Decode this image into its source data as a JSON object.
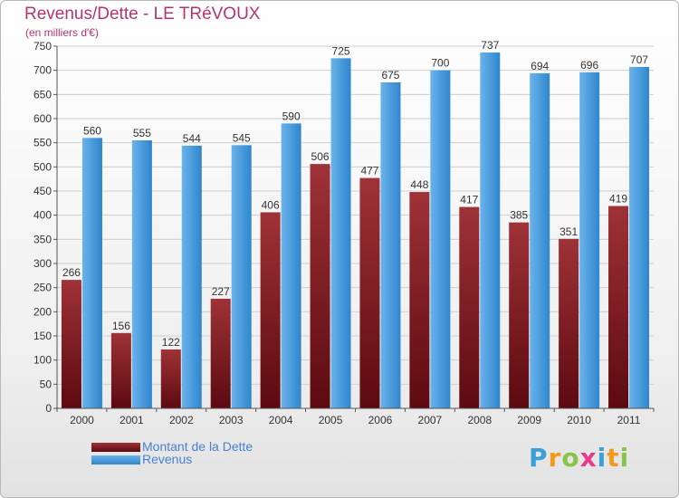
{
  "chart_data": {
    "type": "bar",
    "title": "Revenus/Dette - LE TRéVOUX",
    "subtitle": "(en milliers d'€)",
    "categories": [
      "2000",
      "2001",
      "2002",
      "2003",
      "2004",
      "2005",
      "2006",
      "2007",
      "2008",
      "2009",
      "2010",
      "2011"
    ],
    "series": [
      {
        "name": "Montant de la Dette",
        "values": [
          266,
          156,
          122,
          227,
          406,
          506,
          477,
          448,
          417,
          385,
          351,
          419
        ]
      },
      {
        "name": "Revenus",
        "values": [
          560,
          555,
          544,
          545,
          590,
          725,
          675,
          700,
          737,
          694,
          696,
          707
        ]
      }
    ],
    "ylim": [
      0,
      750
    ],
    "yticks": [
      0,
      50,
      100,
      150,
      200,
      250,
      300,
      350,
      400,
      450,
      500,
      550,
      600,
      650,
      700,
      750
    ],
    "grid": true,
    "legend": "bottom-left"
  },
  "colors": {
    "dette_top": "#9e3237",
    "dette_bottom": "#5c0a10",
    "revenus_top": "#6ab3ec",
    "revenus_bottom": "#2f86cd",
    "title": "#b5346c",
    "legend_text": "#4a7fd1"
  },
  "brand": {
    "letters": [
      "P",
      "r",
      "o",
      "x",
      "i",
      "t",
      "i"
    ],
    "colors": [
      "#3aa0d8",
      "#f39a1e",
      "#8bc34a",
      "#e83a8a",
      "#3aa0d8",
      "#f39a1e",
      "#8bc34a"
    ]
  }
}
